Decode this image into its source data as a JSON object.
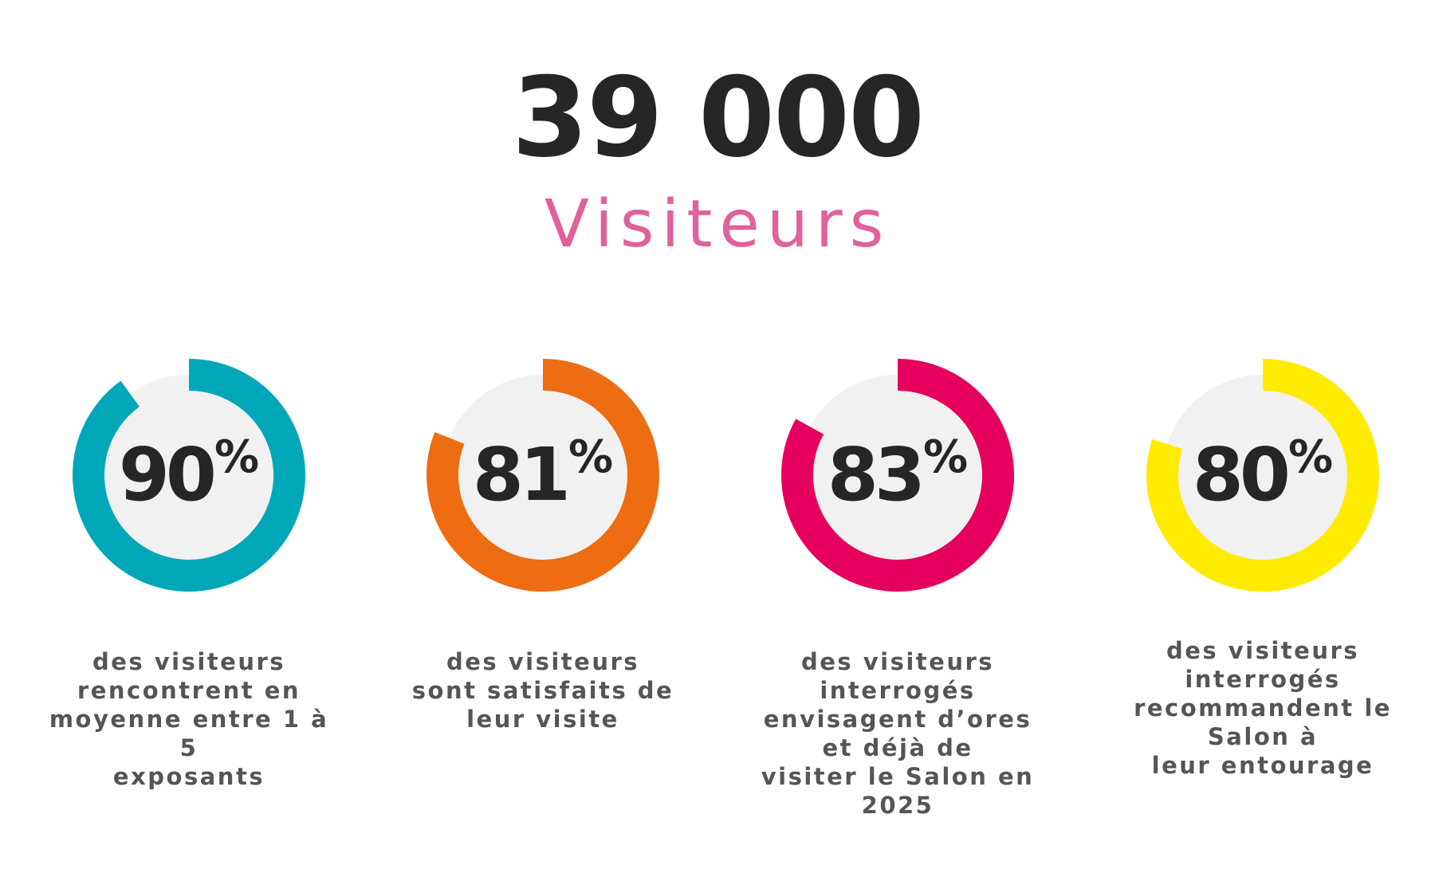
{
  "header": {
    "big_number": "39 000",
    "label": "Visiteurs"
  },
  "ring_track_color": "#f1f1f1",
  "stats": [
    {
      "value_text": "90",
      "percent_sign": "%",
      "fraction": 0.9,
      "color": "#00a7b8",
      "description": "des visiteurs\nrencontrent en\nmoyenne entre 1 à 5\nexposants"
    },
    {
      "value_text": "81",
      "percent_sign": "%",
      "fraction": 0.81,
      "color": "#ee6c12",
      "description": "des visiteurs\nsont satisfaits de\nleur visite"
    },
    {
      "value_text": "83",
      "percent_sign": "%",
      "fraction": 0.83,
      "color": "#e5005d",
      "description": "des visiteurs\ninterrogés\nenvisagent d’ores\net déjà de\nvisiter le Salon en\n2025"
    },
    {
      "value_text": "80",
      "percent_sign": "%",
      "fraction": 0.8,
      "color": "#ffeb00",
      "description": "des visiteurs\ninterrogés\nrecommandent le\nSalon à\nleur entourage"
    }
  ]
}
